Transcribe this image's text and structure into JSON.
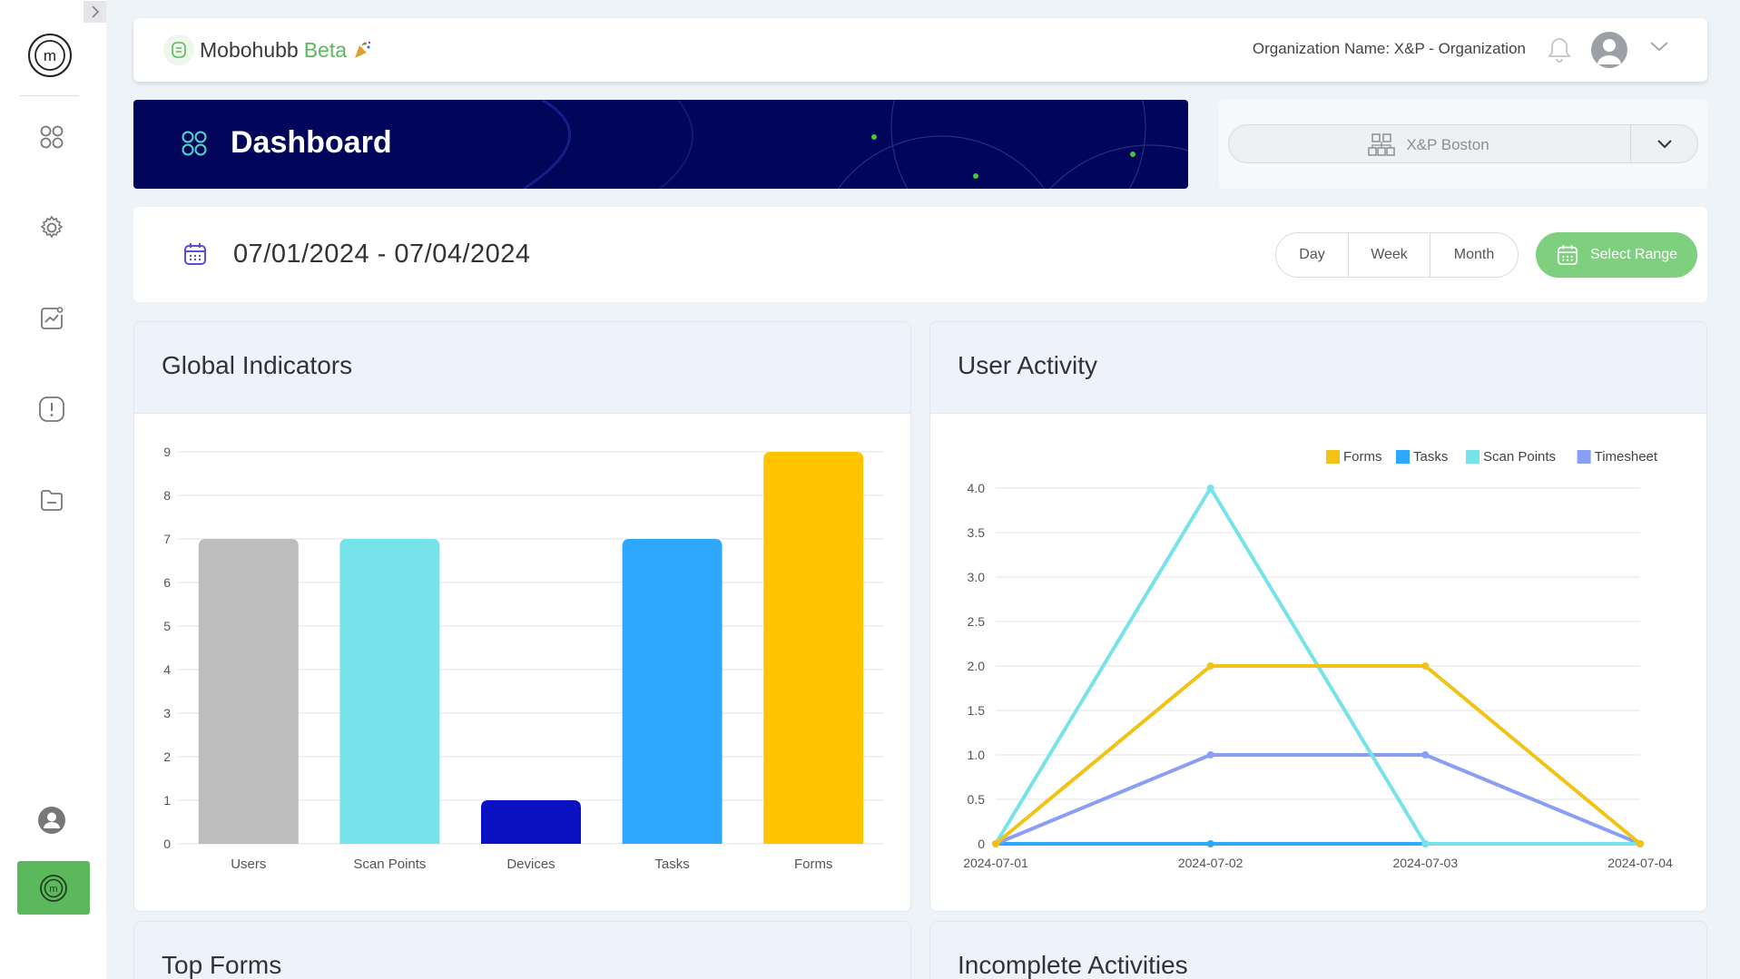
{
  "app": {
    "name": "Mobohubb",
    "beta": "Beta",
    "org_label": "Organization Name: X&P - Organization"
  },
  "banner": {
    "title": "Dashboard"
  },
  "location": {
    "selected": "X&P Boston"
  },
  "date": {
    "range": "07/01/2024 - 07/04/2024",
    "options": [
      "Day",
      "Week",
      "Month"
    ],
    "select_range": "Select Range"
  },
  "cards": {
    "global": "Global Indicators",
    "activity": "User Activity",
    "top_forms": "Top Forms",
    "incomplete": "Incomplete Activities"
  },
  "sidebar": {
    "icons": [
      "dashboard-icon",
      "settings-icon",
      "analytics-icon",
      "alert-icon",
      "folder-icon",
      "user-icon",
      "mobohubb-icon"
    ]
  },
  "colors": {
    "accent": "#5cb85c",
    "banner": "#02065a",
    "users": "#bdbdbd",
    "scan_points": "#76e3ea",
    "devices": "#0c12c2",
    "tasks": "#2ea8ff",
    "forms": "#ffc600",
    "timesheet": "#8a9ef5"
  },
  "chart_data": [
    {
      "type": "bar",
      "categories": [
        "Users",
        "Scan Points",
        "Devices",
        "Tasks",
        "Forms"
      ],
      "values": [
        7,
        7,
        1,
        7,
        9
      ],
      "colors": [
        "#bdbdbd",
        "#76e3ea",
        "#0c12c2",
        "#2ea8ff",
        "#ffc600"
      ],
      "ylim": [
        0,
        9
      ],
      "yticks": [
        "0",
        "1",
        "2",
        "3",
        "4",
        "5",
        "6",
        "7",
        "8",
        "9"
      ],
      "grid": true
    },
    {
      "type": "line",
      "x": [
        "2024-07-01",
        "2024-07-02",
        "2024-07-03",
        "2024-07-04"
      ],
      "series": [
        {
          "name": "Forms",
          "values": [
            0,
            2,
            2,
            0
          ],
          "color": "#f2c316"
        },
        {
          "name": "Tasks",
          "values": [
            0,
            0,
            0,
            0
          ],
          "color": "#2ea8ff"
        },
        {
          "name": "Scan Points",
          "values": [
            0,
            4,
            0,
            0
          ],
          "color": "#76e3ea"
        },
        {
          "name": "Timesheet",
          "values": [
            0,
            1,
            1,
            0
          ],
          "color": "#8a9ef5"
        }
      ],
      "ylim": [
        0,
        4
      ],
      "yticks": [
        "0",
        "0.5",
        "1.0",
        "1.5",
        "2.0",
        "2.5",
        "3.0",
        "3.5",
        "4.0"
      ],
      "legend": "top-right",
      "grid": true
    }
  ]
}
